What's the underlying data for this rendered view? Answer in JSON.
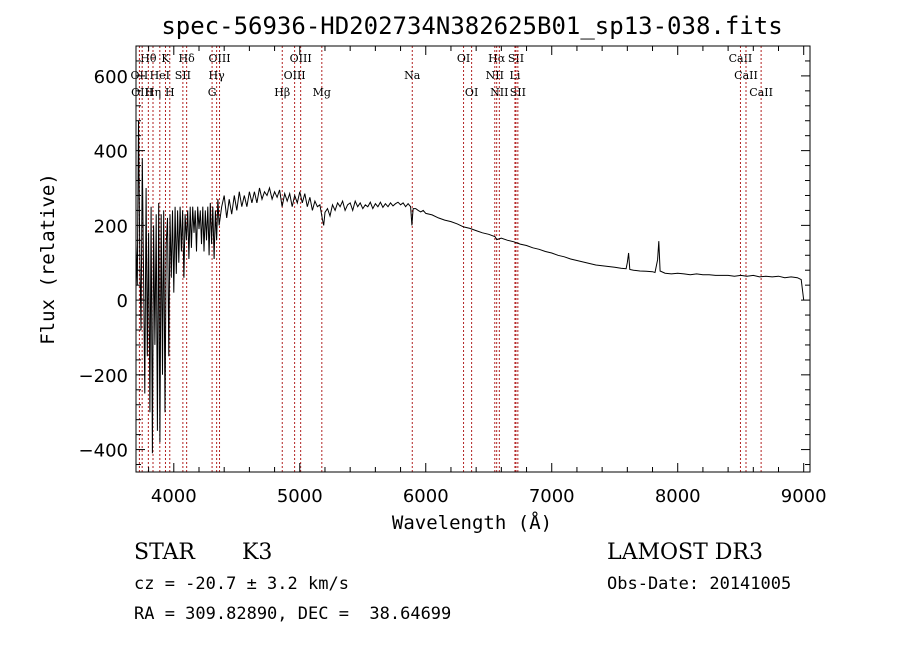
{
  "chart_data": {
    "type": "line",
    "title": "spec-56936-HD202734N382625B01_sp13-038.fits",
    "xlabel": "Wavelength (Å)",
    "ylabel": "Flux (relative)",
    "xlim": [
      3700,
      9050
    ],
    "ylim": [
      -460,
      680
    ],
    "xticks": [
      4000,
      5000,
      6000,
      7000,
      8000,
      9000
    ],
    "yticks": [
      600,
      400,
      200,
      0,
      -200,
      -400
    ],
    "line_color": "#000000",
    "marker_color": "#b22222",
    "spectrum": [
      [
        3700,
        150
      ],
      [
        3710,
        40
      ],
      [
        3720,
        480
      ],
      [
        3730,
        120
      ],
      [
        3740,
        -80
      ],
      [
        3750,
        380
      ],
      [
        3760,
        60
      ],
      [
        3770,
        -250
      ],
      [
        3780,
        300
      ],
      [
        3790,
        -150
      ],
      [
        3800,
        180
      ],
      [
        3810,
        -300
      ],
      [
        3820,
        250
      ],
      [
        3830,
        -410
      ],
      [
        3840,
        200
      ],
      [
        3850,
        -120
      ],
      [
        3860,
        230
      ],
      [
        3870,
        -350
      ],
      [
        3880,
        260
      ],
      [
        3890,
        -380
      ],
      [
        3900,
        230
      ],
      [
        3910,
        -200
      ],
      [
        3920,
        240
      ],
      [
        3930,
        -300
      ],
      [
        3940,
        150
      ],
      [
        3950,
        220
      ],
      [
        3960,
        -150
      ],
      [
        3970,
        230
      ],
      [
        3980,
        60
      ],
      [
        3990,
        240
      ],
      [
        4000,
        20
      ],
      [
        4010,
        250
      ],
      [
        4020,
        70
      ],
      [
        4030,
        240
      ],
      [
        4040,
        100
      ],
      [
        4050,
        250
      ],
      [
        4060,
        130
      ],
      [
        4070,
        240
      ],
      [
        4080,
        60
      ],
      [
        4090,
        230
      ],
      [
        4100,
        160
      ],
      [
        4110,
        240
      ],
      [
        4120,
        110
      ],
      [
        4130,
        250
      ],
      [
        4140,
        140
      ],
      [
        4150,
        250
      ],
      [
        4160,
        180
      ],
      [
        4170,
        240
      ],
      [
        4180,
        130
      ],
      [
        4190,
        250
      ],
      [
        4200,
        190
      ],
      [
        4210,
        240
      ],
      [
        4220,
        150
      ],
      [
        4230,
        250
      ],
      [
        4240,
        130
      ],
      [
        4250,
        240
      ],
      [
        4260,
        160
      ],
      [
        4270,
        250
      ],
      [
        4280,
        120
      ],
      [
        4290,
        260
      ],
      [
        4300,
        150
      ],
      [
        4310,
        250
      ],
      [
        4320,
        110
      ],
      [
        4330,
        240
      ],
      [
        4340,
        160
      ],
      [
        4350,
        270
      ],
      [
        4360,
        200
      ],
      [
        4380,
        250
      ],
      [
        4400,
        280
      ],
      [
        4420,
        220
      ],
      [
        4440,
        270
      ],
      [
        4460,
        230
      ],
      [
        4480,
        280
      ],
      [
        4500,
        240
      ],
      [
        4520,
        290
      ],
      [
        4540,
        250
      ],
      [
        4560,
        280
      ],
      [
        4580,
        250
      ],
      [
        4600,
        290
      ],
      [
        4620,
        260
      ],
      [
        4640,
        290
      ],
      [
        4660,
        260
      ],
      [
        4680,
        300
      ],
      [
        4700,
        270
      ],
      [
        4720,
        290
      ],
      [
        4740,
        280
      ],
      [
        4760,
        300
      ],
      [
        4780,
        270
      ],
      [
        4800,
        290
      ],
      [
        4820,
        275
      ],
      [
        4840,
        295
      ],
      [
        4860,
        250
      ],
      [
        4880,
        285
      ],
      [
        4900,
        265
      ],
      [
        4920,
        285
      ],
      [
        4940,
        250
      ],
      [
        4960,
        280
      ],
      [
        4980,
        260
      ],
      [
        5000,
        290
      ],
      [
        5020,
        260
      ],
      [
        5040,
        285
      ],
      [
        5060,
        250
      ],
      [
        5080,
        275
      ],
      [
        5100,
        240
      ],
      [
        5120,
        265
      ],
      [
        5140,
        250
      ],
      [
        5160,
        255
      ],
      [
        5180,
        215
      ],
      [
        5190,
        200
      ],
      [
        5200,
        235
      ],
      [
        5220,
        245
      ],
      [
        5240,
        225
      ],
      [
        5260,
        255
      ],
      [
        5280,
        240
      ],
      [
        5300,
        260
      ],
      [
        5320,
        250
      ],
      [
        5340,
        265
      ],
      [
        5360,
        240
      ],
      [
        5380,
        255
      ],
      [
        5400,
        260
      ],
      [
        5420,
        240
      ],
      [
        5440,
        265
      ],
      [
        5460,
        250
      ],
      [
        5480,
        260
      ],
      [
        5500,
        245
      ],
      [
        5520,
        255
      ],
      [
        5540,
        250
      ],
      [
        5560,
        262
      ],
      [
        5580,
        245
      ],
      [
        5600,
        258
      ],
      [
        5620,
        250
      ],
      [
        5640,
        262
      ],
      [
        5660,
        248
      ],
      [
        5680,
        258
      ],
      [
        5700,
        250
      ],
      [
        5720,
        260
      ],
      [
        5740,
        252
      ],
      [
        5760,
        258
      ],
      [
        5780,
        262
      ],
      [
        5800,
        255
      ],
      [
        5820,
        260
      ],
      [
        5840,
        250
      ],
      [
        5860,
        258
      ],
      [
        5880,
        250
      ],
      [
        5890,
        200
      ],
      [
        5896,
        230
      ],
      [
        5900,
        245
      ],
      [
        5920,
        245
      ],
      [
        5940,
        240
      ],
      [
        5960,
        236
      ],
      [
        5980,
        240
      ],
      [
        6000,
        232
      ],
      [
        6050,
        228
      ],
      [
        6100,
        220
      ],
      [
        6150,
        214
      ],
      [
        6200,
        210
      ],
      [
        6250,
        204
      ],
      [
        6300,
        196
      ],
      [
        6350,
        192
      ],
      [
        6400,
        186
      ],
      [
        6450,
        180
      ],
      [
        6500,
        176
      ],
      [
        6550,
        170
      ],
      [
        6563,
        162
      ],
      [
        6600,
        166
      ],
      [
        6650,
        160
      ],
      [
        6700,
        156
      ],
      [
        6750,
        150
      ],
      [
        6800,
        146
      ],
      [
        6850,
        140
      ],
      [
        6900,
        136
      ],
      [
        6950,
        130
      ],
      [
        7000,
        126
      ],
      [
        7050,
        120
      ],
      [
        7100,
        116
      ],
      [
        7150,
        110
      ],
      [
        7200,
        106
      ],
      [
        7250,
        102
      ],
      [
        7300,
        98
      ],
      [
        7350,
        94
      ],
      [
        7400,
        92
      ],
      [
        7450,
        90
      ],
      [
        7500,
        88
      ],
      [
        7550,
        85
      ],
      [
        7590,
        84
      ],
      [
        7600,
        100
      ],
      [
        7610,
        126
      ],
      [
        7620,
        82
      ],
      [
        7650,
        80
      ],
      [
        7700,
        78
      ],
      [
        7750,
        77
      ],
      [
        7800,
        76
      ],
      [
        7820,
        74
      ],
      [
        7840,
        108
      ],
      [
        7850,
        158
      ],
      [
        7860,
        78
      ],
      [
        7900,
        72
      ],
      [
        7950,
        70
      ],
      [
        8000,
        72
      ],
      [
        8050,
        70
      ],
      [
        8100,
        68
      ],
      [
        8150,
        70
      ],
      [
        8200,
        68
      ],
      [
        8250,
        68
      ],
      [
        8300,
        66
      ],
      [
        8350,
        66
      ],
      [
        8400,
        66
      ],
      [
        8450,
        64
      ],
      [
        8500,
        66
      ],
      [
        8550,
        64
      ],
      [
        8600,
        66
      ],
      [
        8650,
        62
      ],
      [
        8700,
        64
      ],
      [
        8750,
        62
      ],
      [
        8800,
        64
      ],
      [
        8850,
        60
      ],
      [
        8900,
        62
      ],
      [
        8950,
        60
      ],
      [
        8980,
        55
      ],
      [
        9000,
        0
      ]
    ],
    "line_markers": [
      {
        "label": "Hθ",
        "wavelength": 3798,
        "tier": 1
      },
      {
        "label": "K",
        "wavelength": 3934,
        "tier": 1
      },
      {
        "label": "Hδ",
        "wavelength": 4102,
        "tier": 1
      },
      {
        "label": "OIII",
        "wavelength": 4363,
        "tier": 1
      },
      {
        "label": "OIII",
        "wavelength": 5007,
        "tier": 1
      },
      {
        "label": "OI",
        "wavelength": 6300,
        "tier": 1
      },
      {
        "label": "Hα",
        "wavelength": 6563,
        "tier": 1
      },
      {
        "label": "SII",
        "wavelength": 6716,
        "tier": 1
      },
      {
        "label": "CaII",
        "wavelength": 8498,
        "tier": 1
      },
      {
        "label": "OII",
        "wavelength": 3727,
        "tier": 2
      },
      {
        "label": "HeI",
        "wavelength": 3889,
        "tier": 2
      },
      {
        "label": "SII",
        "wavelength": 4072,
        "tier": 2
      },
      {
        "label": "Hγ",
        "wavelength": 4340,
        "tier": 2
      },
      {
        "label": "OIII",
        "wavelength": 4959,
        "tier": 2
      },
      {
        "label": "Na",
        "wavelength": 5893,
        "tier": 2
      },
      {
        "label": "NII",
        "wavelength": 6548,
        "tier": 2
      },
      {
        "label": "Li",
        "wavelength": 6708,
        "tier": 2
      },
      {
        "label": "CaII",
        "wavelength": 8542,
        "tier": 2
      },
      {
        "label": "OIII",
        "wavelength": 3749,
        "tier": 3
      },
      {
        "label": "Hη",
        "wavelength": 3835,
        "tier": 3
      },
      {
        "label": "H",
        "wavelength": 3968,
        "tier": 3
      },
      {
        "label": "G",
        "wavelength": 4304,
        "tier": 3
      },
      {
        "label": "Hβ",
        "wavelength": 4861,
        "tier": 3
      },
      {
        "label": "Mg",
        "wavelength": 5175,
        "tier": 3
      },
      {
        "label": "OI",
        "wavelength": 6364,
        "tier": 3
      },
      {
        "label": "NII",
        "wavelength": 6584,
        "tier": 3
      },
      {
        "label": "SII",
        "wavelength": 6731,
        "tier": 3
      },
      {
        "label": "CaII",
        "wavelength": 8662,
        "tier": 3
      }
    ]
  },
  "info": {
    "object_class": "STAR",
    "subclass": "K3",
    "survey": "LAMOST DR3",
    "velocity": "cz = -20.7 ± 3.2 km/s",
    "obs_date": "Obs-Date: 20141005",
    "coords": "RA = 309.82890, DEC =  38.64699"
  }
}
